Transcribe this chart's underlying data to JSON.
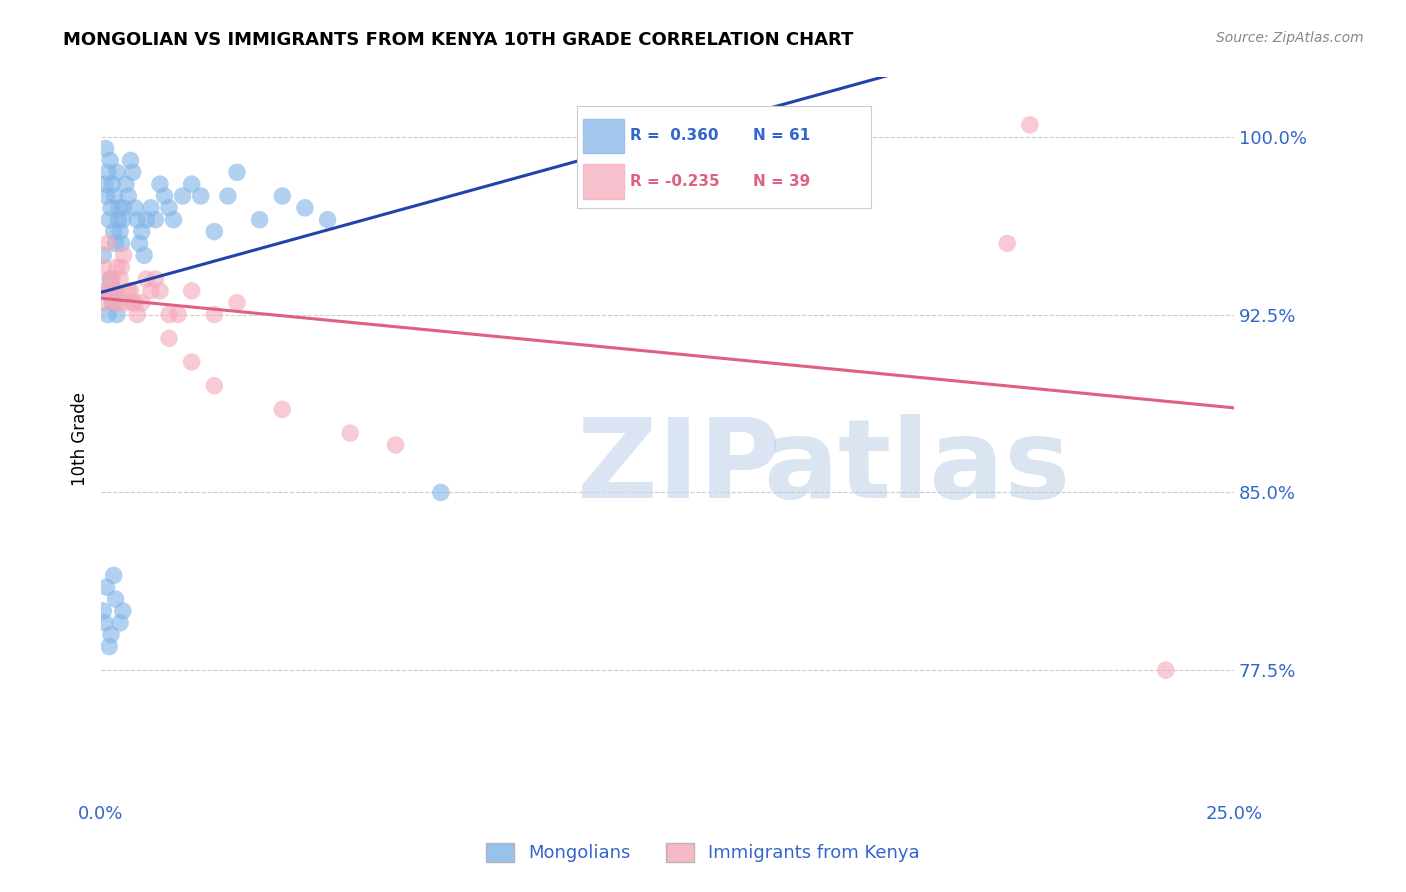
{
  "title": "MONGOLIAN VS IMMIGRANTS FROM KENYA 10TH GRADE CORRELATION CHART",
  "source": "Source: ZipAtlas.com",
  "ylabel": "10th Grade",
  "xlim": [
    0.0,
    25.0
  ],
  "ylim": [
    72.0,
    102.5
  ],
  "yticks": [
    77.5,
    85.0,
    92.5,
    100.0
  ],
  "xticks": [
    0.0,
    2.5,
    5.0,
    7.5,
    10.0,
    12.5,
    15.0,
    17.5,
    20.0,
    22.5,
    25.0
  ],
  "blue_R": 0.36,
  "blue_N": 61,
  "pink_R": -0.235,
  "pink_N": 39,
  "blue_color": "#7fb3e8",
  "pink_color": "#f4a8b8",
  "blue_line_color": "#2244aa",
  "pink_line_color": "#e06080",
  "legend_label_blue": "Mongolians",
  "legend_label_pink": "Immigrants from Kenya",
  "blue_x": [
    0.05,
    0.08,
    0.1,
    0.12,
    0.15,
    0.18,
    0.2,
    0.22,
    0.25,
    0.28,
    0.3,
    0.32,
    0.35,
    0.38,
    0.4,
    0.42,
    0.45,
    0.48,
    0.5,
    0.55,
    0.6,
    0.65,
    0.7,
    0.75,
    0.8,
    0.85,
    0.9,
    0.95,
    1.0,
    1.1,
    1.2,
    1.3,
    1.4,
    1.5,
    1.6,
    1.8,
    2.0,
    2.2,
    2.5,
    2.8,
    3.0,
    3.5,
    4.0,
    4.5,
    5.0,
    0.1,
    0.15,
    0.2,
    0.25,
    0.3,
    0.35,
    0.05,
    0.08,
    0.12,
    0.18,
    0.22,
    0.28,
    0.32,
    0.42,
    0.48,
    7.5
  ],
  "blue_y": [
    95.0,
    98.0,
    99.5,
    97.5,
    98.5,
    96.5,
    99.0,
    97.0,
    98.0,
    96.0,
    97.5,
    95.5,
    98.5,
    96.5,
    97.0,
    96.0,
    95.5,
    96.5,
    97.0,
    98.0,
    97.5,
    99.0,
    98.5,
    97.0,
    96.5,
    95.5,
    96.0,
    95.0,
    96.5,
    97.0,
    96.5,
    98.0,
    97.5,
    97.0,
    96.5,
    97.5,
    98.0,
    97.5,
    96.0,
    97.5,
    98.5,
    96.5,
    97.5,
    97.0,
    96.5,
    93.5,
    92.5,
    94.0,
    93.0,
    93.5,
    92.5,
    80.0,
    79.5,
    81.0,
    78.5,
    79.0,
    81.5,
    80.5,
    79.5,
    80.0,
    85.0
  ],
  "pink_x": [
    0.05,
    0.1,
    0.15,
    0.2,
    0.25,
    0.3,
    0.35,
    0.4,
    0.45,
    0.5,
    0.6,
    0.7,
    0.8,
    0.9,
    1.0,
    1.1,
    1.2,
    1.3,
    1.5,
    1.7,
    2.0,
    2.5,
    3.0,
    0.12,
    0.22,
    0.32,
    0.42,
    0.55,
    0.65,
    0.75,
    1.5,
    2.0,
    2.5,
    4.0,
    5.5,
    6.5,
    20.5,
    23.5,
    20.0
  ],
  "pink_y": [
    94.5,
    93.0,
    95.5,
    93.5,
    94.0,
    93.0,
    94.5,
    93.0,
    94.5,
    95.0,
    93.5,
    93.0,
    92.5,
    93.0,
    94.0,
    93.5,
    94.0,
    93.5,
    92.5,
    92.5,
    93.5,
    92.5,
    93.0,
    93.5,
    94.0,
    93.5,
    94.0,
    93.0,
    93.5,
    93.0,
    91.5,
    90.5,
    89.5,
    88.5,
    87.5,
    87.0,
    100.5,
    77.5,
    95.5
  ]
}
